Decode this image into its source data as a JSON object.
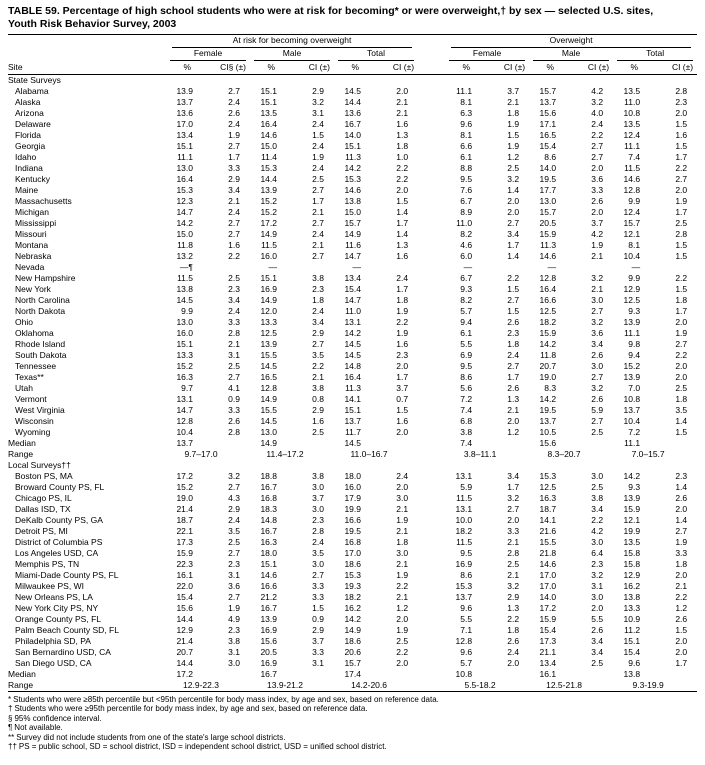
{
  "title": {
    "line1": "TABLE 59. Percentage of high school students who were at risk for becoming* or were overweight,† by sex — selected U.S. sites,",
    "line2": "Youth Risk Behavior Survey, 2003"
  },
  "header": {
    "group1": "At risk for becoming overweight",
    "group2": "Overweight",
    "sub": [
      "Female",
      "Male",
      "Total"
    ],
    "site": "Site",
    "pct": "%",
    "ci_first": "CI§ (±)",
    "ci": "CI (±)"
  },
  "sections": [
    {
      "name": "State Surveys",
      "rows": [
        {
          "site": "Alabama",
          "v": [
            "13.9",
            "2.7",
            "15.1",
            "2.9",
            "14.5",
            "2.0",
            "11.1",
            "3.7",
            "15.7",
            "4.2",
            "13.5",
            "2.8"
          ]
        },
        {
          "site": "Alaska",
          "v": [
            "13.7",
            "2.4",
            "15.1",
            "3.2",
            "14.4",
            "2.1",
            "8.1",
            "2.1",
            "13.7",
            "3.2",
            "11.0",
            "2.3"
          ]
        },
        {
          "site": "Arizona",
          "v": [
            "13.6",
            "2.6",
            "13.5",
            "3.1",
            "13.6",
            "2.1",
            "6.3",
            "1.8",
            "15.6",
            "4.0",
            "10.8",
            "2.0"
          ]
        },
        {
          "site": "Delaware",
          "v": [
            "17.0",
            "2.4",
            "16.4",
            "2.4",
            "16.7",
            "1.6",
            "9.6",
            "1.9",
            "17.1",
            "2.4",
            "13.5",
            "1.5"
          ]
        },
        {
          "site": "Florida",
          "v": [
            "13.4",
            "1.9",
            "14.6",
            "1.5",
            "14.0",
            "1.3",
            "8.1",
            "1.5",
            "16.5",
            "2.2",
            "12.4",
            "1.6"
          ]
        },
        {
          "site": "Georgia",
          "v": [
            "15.1",
            "2.7",
            "15.0",
            "2.4",
            "15.1",
            "1.8",
            "6.6",
            "1.9",
            "15.4",
            "2.7",
            "11.1",
            "1.5"
          ]
        },
        {
          "site": "Idaho",
          "v": [
            "11.1",
            "1.7",
            "11.4",
            "1.9",
            "11.3",
            "1.0",
            "6.1",
            "1.2",
            "8.6",
            "2.7",
            "7.4",
            "1.7"
          ]
        },
        {
          "site": "Indiana",
          "v": [
            "13.0",
            "3.3",
            "15.3",
            "2.4",
            "14.2",
            "2.2",
            "8.8",
            "2.5",
            "14.0",
            "2.0",
            "11.5",
            "2.2"
          ]
        },
        {
          "site": "Kentucky",
          "v": [
            "16.4",
            "2.9",
            "14.4",
            "2.5",
            "15.3",
            "2.2",
            "9.5",
            "3.2",
            "19.5",
            "3.6",
            "14.6",
            "2.7"
          ]
        },
        {
          "site": "Maine",
          "v": [
            "15.3",
            "3.4",
            "13.9",
            "2.7",
            "14.6",
            "2.0",
            "7.6",
            "1.4",
            "17.7",
            "3.3",
            "12.8",
            "2.0"
          ]
        },
        {
          "site": "Massachusetts",
          "v": [
            "12.3",
            "2.1",
            "15.2",
            "1.7",
            "13.8",
            "1.5",
            "6.7",
            "2.0",
            "13.0",
            "2.6",
            "9.9",
            "1.9"
          ]
        },
        {
          "site": "Michigan",
          "v": [
            "14.7",
            "2.4",
            "15.2",
            "2.1",
            "15.0",
            "1.4",
            "8.9",
            "2.0",
            "15.7",
            "2.0",
            "12.4",
            "1.7"
          ]
        },
        {
          "site": "Mississippi",
          "v": [
            "14.2",
            "2.7",
            "17.2",
            "2.7",
            "15.7",
            "1.7",
            "11.0",
            "2.7",
            "20.5",
            "3.7",
            "15.7",
            "2.5"
          ]
        },
        {
          "site": "Missouri",
          "v": [
            "15.0",
            "2.7",
            "14.9",
            "2.4",
            "14.9",
            "1.4",
            "8.2",
            "3.4",
            "15.9",
            "4.2",
            "12.1",
            "2.8"
          ]
        },
        {
          "site": "Montana",
          "v": [
            "11.8",
            "1.6",
            "11.5",
            "2.1",
            "11.6",
            "1.3",
            "4.6",
            "1.7",
            "11.3",
            "1.9",
            "8.1",
            "1.5"
          ]
        },
        {
          "site": "Nebraska",
          "v": [
            "13.2",
            "2.2",
            "16.0",
            "2.7",
            "14.7",
            "1.6",
            "6.0",
            "1.4",
            "14.6",
            "2.1",
            "10.4",
            "1.5"
          ]
        },
        {
          "site": "Nevada",
          "v": [
            "—¶",
            "",
            "—",
            "",
            "—",
            "",
            "—",
            "",
            "—",
            "",
            "—",
            ""
          ]
        },
        {
          "site": "New Hampshire",
          "v": [
            "11.5",
            "2.5",
            "15.1",
            "3.8",
            "13.4",
            "2.4",
            "6.7",
            "2.2",
            "12.8",
            "3.2",
            "9.9",
            "2.2"
          ]
        },
        {
          "site": "New York",
          "v": [
            "13.8",
            "2.3",
            "16.9",
            "2.3",
            "15.4",
            "1.7",
            "9.3",
            "1.5",
            "16.4",
            "2.1",
            "12.9",
            "1.5"
          ]
        },
        {
          "site": "North Carolina",
          "v": [
            "14.5",
            "3.4",
            "14.9",
            "1.8",
            "14.7",
            "1.8",
            "8.2",
            "2.7",
            "16.6",
            "3.0",
            "12.5",
            "1.8"
          ]
        },
        {
          "site": "North Dakota",
          "v": [
            "9.9",
            "2.4",
            "12.0",
            "2.4",
            "11.0",
            "1.9",
            "5.7",
            "1.5",
            "12.5",
            "2.7",
            "9.3",
            "1.7"
          ]
        },
        {
          "site": "Ohio",
          "v": [
            "13.0",
            "3.3",
            "13.3",
            "3.4",
            "13.1",
            "2.2",
            "9.4",
            "2.6",
            "18.2",
            "3.2",
            "13.9",
            "2.0"
          ]
        },
        {
          "site": "Oklahoma",
          "v": [
            "16.0",
            "2.8",
            "12.5",
            "2.9",
            "14.2",
            "1.9",
            "6.1",
            "2.3",
            "15.9",
            "3.6",
            "11.1",
            "1.9"
          ]
        },
        {
          "site": "Rhode Island",
          "v": [
            "15.1",
            "2.1",
            "13.9",
            "2.7",
            "14.5",
            "1.6",
            "5.5",
            "1.8",
            "14.2",
            "3.4",
            "9.8",
            "2.7"
          ]
        },
        {
          "site": "South Dakota",
          "v": [
            "13.3",
            "3.1",
            "15.5",
            "3.5",
            "14.5",
            "2.3",
            "6.9",
            "2.4",
            "11.8",
            "2.6",
            "9.4",
            "2.2"
          ]
        },
        {
          "site": "Tennessee",
          "v": [
            "15.2",
            "2.5",
            "14.5",
            "2.2",
            "14.8",
            "2.0",
            "9.5",
            "2.7",
            "20.7",
            "3.0",
            "15.2",
            "2.0"
          ]
        },
        {
          "site": "Texas**",
          "v": [
            "16.3",
            "2.7",
            "16.5",
            "2.1",
            "16.4",
            "1.7",
            "8.6",
            "1.7",
            "19.0",
            "2.7",
            "13.9",
            "2.0"
          ]
        },
        {
          "site": "Utah",
          "v": [
            "9.7",
            "4.1",
            "12.8",
            "3.8",
            "11.3",
            "3.7",
            "5.6",
            "2.6",
            "8.3",
            "3.2",
            "7.0",
            "2.5"
          ]
        },
        {
          "site": "Vermont",
          "v": [
            "13.1",
            "0.9",
            "14.9",
            "0.8",
            "14.1",
            "0.7",
            "7.2",
            "1.3",
            "14.2",
            "2.6",
            "10.8",
            "1.8"
          ]
        },
        {
          "site": "West Virginia",
          "v": [
            "14.7",
            "3.3",
            "15.5",
            "2.9",
            "15.1",
            "1.5",
            "7.4",
            "2.1",
            "19.5",
            "5.9",
            "13.7",
            "3.5"
          ]
        },
        {
          "site": "Wisconsin",
          "v": [
            "12.8",
            "2.6",
            "14.5",
            "1.6",
            "13.7",
            "1.6",
            "6.8",
            "2.0",
            "13.7",
            "2.7",
            "10.4",
            "1.4"
          ]
        },
        {
          "site": "Wyoming",
          "v": [
            "10.4",
            "2.8",
            "13.0",
            "2.5",
            "11.7",
            "2.0",
            "3.8",
            "1.2",
            "10.5",
            "2.5",
            "7.2",
            "1.5"
          ]
        }
      ],
      "summary": [
        {
          "label": "Median",
          "type": "median",
          "values": [
            "13.7",
            "14.9",
            "14.5",
            "7.4",
            "15.6",
            "11.1"
          ]
        },
        {
          "label": "Range",
          "type": "range",
          "values": [
            "9.7–17.0",
            "11.4–17.2",
            "11.0–16.7",
            "3.8–11.1",
            "8.3–20.7",
            "7.0–15.7"
          ]
        }
      ]
    },
    {
      "name": "Local Surveys††",
      "rows": [
        {
          "site": "Boston PS, MA",
          "v": [
            "17.2",
            "3.2",
            "18.8",
            "3.8",
            "18.0",
            "2.4",
            "13.1",
            "3.4",
            "15.3",
            "3.0",
            "14.2",
            "2.3"
          ]
        },
        {
          "site": "Broward County PS, FL",
          "v": [
            "15.2",
            "2.7",
            "16.7",
            "3.0",
            "16.0",
            "2.0",
            "5.9",
            "1.7",
            "12.5",
            "2.5",
            "9.3",
            "1.4"
          ]
        },
        {
          "site": "Chicago PS, IL",
          "v": [
            "19.0",
            "4.3",
            "16.8",
            "3.7",
            "17.9",
            "3.0",
            "11.5",
            "3.2",
            "16.3",
            "3.8",
            "13.9",
            "2.6"
          ]
        },
        {
          "site": "Dallas ISD, TX",
          "v": [
            "21.4",
            "2.9",
            "18.3",
            "3.0",
            "19.9",
            "2.1",
            "13.1",
            "2.7",
            "18.7",
            "3.4",
            "15.9",
            "2.0"
          ]
        },
        {
          "site": "DeKalb County PS, GA",
          "v": [
            "18.7",
            "2.4",
            "14.8",
            "2.3",
            "16.6",
            "1.9",
            "10.0",
            "2.0",
            "14.1",
            "2.2",
            "12.1",
            "1.4"
          ]
        },
        {
          "site": "Detroit PS, MI",
          "v": [
            "22.1",
            "3.5",
            "16.7",
            "2.8",
            "19.5",
            "2.1",
            "18.2",
            "3.3",
            "21.6",
            "4.2",
            "19.9",
            "2.7"
          ]
        },
        {
          "site": "District of Columbia PS",
          "v": [
            "17.3",
            "2.5",
            "16.3",
            "2.4",
            "16.8",
            "1.8",
            "11.5",
            "2.1",
            "15.5",
            "3.0",
            "13.5",
            "1.9"
          ]
        },
        {
          "site": "Los Angeles USD, CA",
          "v": [
            "15.9",
            "2.7",
            "18.0",
            "3.5",
            "17.0",
            "3.0",
            "9.5",
            "2.8",
            "21.8",
            "6.4",
            "15.8",
            "3.3"
          ]
        },
        {
          "site": "Memphis PS, TN",
          "v": [
            "22.3",
            "2.3",
            "15.1",
            "3.0",
            "18.6",
            "2.1",
            "16.9",
            "2.5",
            "14.6",
            "2.3",
            "15.8",
            "1.8"
          ]
        },
        {
          "site": "Miami-Dade County PS, FL",
          "v": [
            "16.1",
            "3.1",
            "14.6",
            "2.7",
            "15.3",
            "1.9",
            "8.6",
            "2.1",
            "17.0",
            "3.2",
            "12.9",
            "2.0"
          ]
        },
        {
          "site": "Milwaukee PS, WI",
          "v": [
            "22.0",
            "3.6",
            "16.6",
            "3.3",
            "19.3",
            "2.2",
            "15.3",
            "3.2",
            "17.0",
            "3.1",
            "16.2",
            "2.1"
          ]
        },
        {
          "site": "New Orleans PS, LA",
          "v": [
            "15.4",
            "2.7",
            "21.2",
            "3.3",
            "18.2",
            "2.1",
            "13.7",
            "2.9",
            "14.0",
            "3.0",
            "13.8",
            "2.2"
          ]
        },
        {
          "site": "New York City PS, NY",
          "v": [
            "15.6",
            "1.9",
            "16.7",
            "1.5",
            "16.2",
            "1.2",
            "9.6",
            "1.3",
            "17.2",
            "2.0",
            "13.3",
            "1.2"
          ]
        },
        {
          "site": "Orange County PS, FL",
          "v": [
            "14.4",
            "4.9",
            "13.9",
            "0.9",
            "14.2",
            "2.0",
            "5.5",
            "2.2",
            "15.9",
            "5.5",
            "10.9",
            "2.6"
          ]
        },
        {
          "site": "Palm Beach County SD, FL",
          "v": [
            "12.9",
            "2.3",
            "16.9",
            "2.9",
            "14.9",
            "1.9",
            "7.1",
            "1.8",
            "15.4",
            "2.6",
            "11.2",
            "1.5"
          ]
        },
        {
          "site": "Philadelphia SD, PA",
          "v": [
            "21.4",
            "3.8",
            "15.6",
            "3.7",
            "18.6",
            "2.5",
            "12.8",
            "2.6",
            "17.3",
            "3.4",
            "15.1",
            "2.0"
          ]
        },
        {
          "site": "San Bernardino USD, CA",
          "v": [
            "20.7",
            "3.1",
            "20.5",
            "3.3",
            "20.6",
            "2.2",
            "9.6",
            "2.4",
            "21.1",
            "3.4",
            "15.4",
            "2.0"
          ]
        },
        {
          "site": "San Diego USD, CA",
          "v": [
            "14.4",
            "3.0",
            "16.9",
            "3.1",
            "15.7",
            "2.0",
            "5.7",
            "2.0",
            "13.4",
            "2.5",
            "9.6",
            "1.7"
          ]
        }
      ],
      "summary": [
        {
          "label": "Median",
          "type": "median",
          "values": [
            "17.2",
            "16.7",
            "17.4",
            "10.8",
            "16.1",
            "13.8"
          ]
        },
        {
          "label": "Range",
          "type": "range",
          "values": [
            "12.9-22.3",
            "13.9-21.2",
            "14.2-20.6",
            "5.5-18.2",
            "12.5-21.8",
            "9.3-19.9"
          ]
        }
      ]
    }
  ],
  "footnotes": [
    {
      "marker": "*",
      "text": "Students who were ≥85th percentile but <95th percentile for body mass index, by age and sex, based on reference data."
    },
    {
      "marker": "†",
      "text": "Students who were ≥95th percentile for body mass index, by age and sex, based on reference data."
    },
    {
      "marker": "§",
      "text": "95% confidence interval."
    },
    {
      "marker": "¶",
      "text": "Not available."
    },
    {
      "marker": "**",
      "text": "Survey did not include students from one of the state's large school districts."
    },
    {
      "marker": "††",
      "text": "PS = public school, SD = school district, ISD = independent school district, USD = unified school district."
    }
  ]
}
